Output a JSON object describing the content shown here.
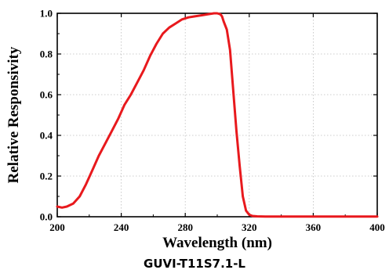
{
  "chart_data": {
    "type": "line",
    "title": "",
    "xlabel": "Wavelength (nm)",
    "ylabel": "Relative Responsivity",
    "xlim": [
      200,
      400
    ],
    "ylim": [
      0,
      1.0
    ],
    "xticks": [
      200,
      240,
      280,
      320,
      360,
      400
    ],
    "xtick_labels": [
      "200",
      "240",
      "280",
      "320",
      "360",
      "400"
    ],
    "yticks": [
      0.0,
      0.2,
      0.4,
      0.6,
      0.8,
      1.0
    ],
    "ytick_labels": [
      "0.0",
      "0.2",
      "0.4",
      "0.6",
      "0.8",
      "1.0"
    ],
    "grid": true,
    "series": [
      {
        "color": "#e8191d",
        "x": [
          200,
          203,
          206,
          210,
          214,
          218,
          222,
          226,
          230,
          234,
          238,
          242,
          246,
          250,
          254,
          258,
          262,
          266,
          270,
          274,
          278,
          282,
          286,
          290,
          294,
          298,
          300,
          302,
          303,
          304,
          306,
          308,
          310,
          312,
          314,
          316,
          318,
          320,
          322,
          325,
          330,
          340,
          360,
          380,
          400
        ],
        "y": [
          0.05,
          0.045,
          0.05,
          0.065,
          0.1,
          0.16,
          0.23,
          0.3,
          0.36,
          0.42,
          0.48,
          0.55,
          0.6,
          0.66,
          0.72,
          0.79,
          0.85,
          0.9,
          0.93,
          0.95,
          0.97,
          0.98,
          0.985,
          0.99,
          0.995,
          1.0,
          1.0,
          0.995,
          0.985,
          0.96,
          0.92,
          0.82,
          0.62,
          0.42,
          0.25,
          0.1,
          0.03,
          0.01,
          0.004,
          0.002,
          0.001,
          0.001,
          0.001,
          0.001,
          0.001
        ]
      }
    ]
  },
  "caption": "GUVI-T11S7.1-L"
}
